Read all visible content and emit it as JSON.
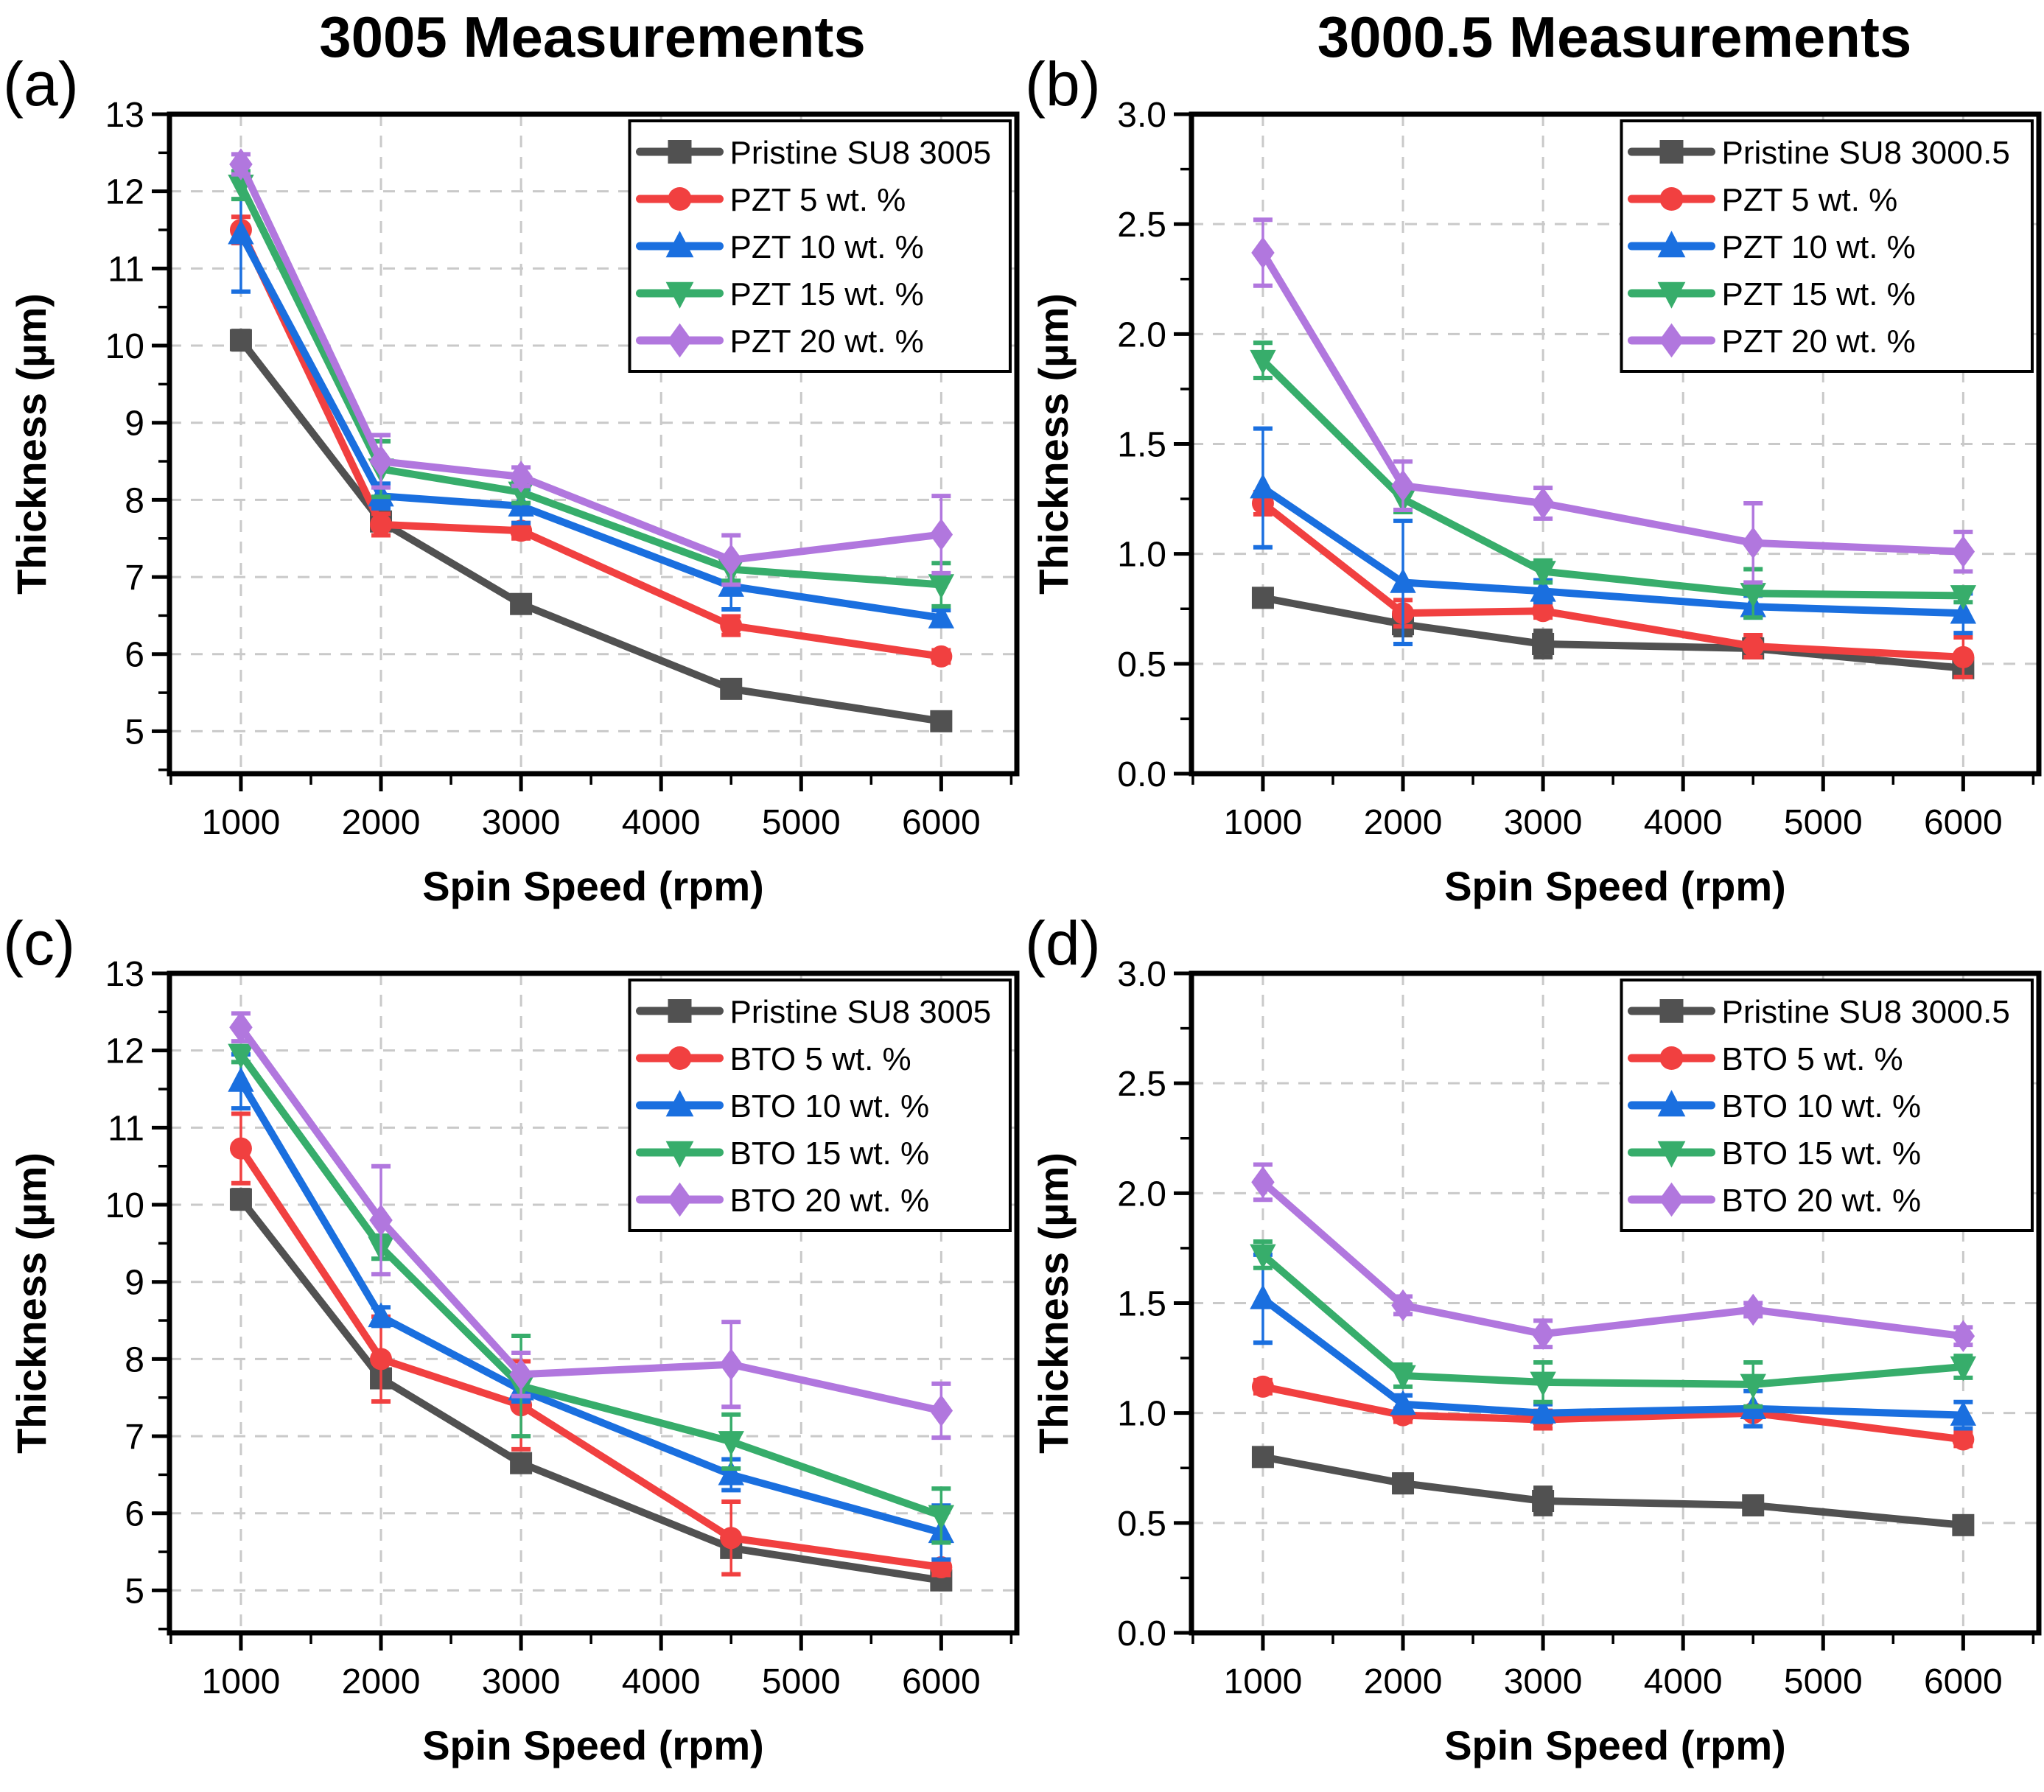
{
  "figure": {
    "column_titles": [
      "3005 Measurements",
      "3000.5 Measurements"
    ],
    "palette": {
      "pristine": "#515151",
      "five": "#F14040",
      "ten": "#1A6FDF",
      "fifteen": "#37AD6B",
      "twenty": "#B177DE",
      "grid": "#c9c9c9",
      "frame": "#000000"
    }
  },
  "chart_data": [
    {
      "id": "a",
      "panel_label": "(a)",
      "type": "line",
      "column_title": "3005 Measurements",
      "xlabel": "Spin Speed (rpm)",
      "ylabel": "Thickness (µm)",
      "x": [
        1000,
        2000,
        3000,
        4500,
        6000
      ],
      "xticks": [
        1000,
        2000,
        3000,
        4000,
        5000,
        6000
      ],
      "xlim": [
        490,
        6540
      ],
      "ylim": [
        4.45,
        13
      ],
      "yticks": [
        5,
        6,
        7,
        8,
        9,
        10,
        11,
        12,
        13
      ],
      "ytick_labels": [
        "5",
        "6",
        "7",
        "8",
        "9",
        "10",
        "11",
        "12",
        "13"
      ],
      "y_minor_step": 0.5,
      "grid": true,
      "legend_position": "top-right",
      "series": [
        {
          "name": "Pristine SU8 3005",
          "color": "#515151",
          "marker": "square",
          "values": [
            10.07,
            7.72,
            6.65,
            5.55,
            5.13
          ],
          "yerr": [
            0.12,
            0.08,
            0.06,
            0.08,
            0.05
          ]
        },
        {
          "name": "PZT 5 wt. %",
          "color": "#F14040",
          "marker": "circle",
          "values": [
            11.5,
            7.68,
            7.6,
            6.37,
            5.97
          ],
          "yerr": [
            0.17,
            0.14,
            0.1,
            0.12,
            0.08
          ]
        },
        {
          "name": "PZT 10 wt. %",
          "color": "#1A6FDF",
          "marker": "triangle-up",
          "values": [
            11.45,
            8.05,
            7.92,
            6.88,
            6.47
          ],
          "yerr": [
            0.75,
            0.16,
            0.22,
            0.3,
            0.1
          ]
        },
        {
          "name": "PZT 15 wt. %",
          "color": "#37AD6B",
          "marker": "triangle-down",
          "values": [
            12.08,
            8.4,
            8.1,
            7.1,
            6.9
          ],
          "yerr": [
            0.18,
            0.36,
            0.14,
            0.15,
            0.28
          ]
        },
        {
          "name": "PZT 20 wt. %",
          "color": "#B177DE",
          "marker": "diamond",
          "values": [
            12.35,
            8.5,
            8.3,
            7.22,
            7.55
          ],
          "yerr": [
            0.13,
            0.34,
            0.12,
            0.32,
            0.5
          ]
        }
      ]
    },
    {
      "id": "b",
      "panel_label": "(b)",
      "type": "line",
      "column_title": "3000.5 Measurements",
      "xlabel": "Spin Speed (rpm)",
      "ylabel": "Thickness (µm)",
      "x": [
        1000,
        2000,
        3000,
        4500,
        6000
      ],
      "xticks": [
        1000,
        2000,
        3000,
        4000,
        5000,
        6000
      ],
      "xlim": [
        490,
        6540
      ],
      "ylim": [
        0,
        3
      ],
      "yticks": [
        0,
        0.5,
        1,
        1.5,
        2,
        2.5,
        3
      ],
      "ytick_labels": [
        "0.0",
        "0.5",
        "1.0",
        "1.5",
        "2.0",
        "2.5",
        "3.0"
      ],
      "y_minor_step": 0.25,
      "grid": true,
      "legend_position": "top-right",
      "series": [
        {
          "name": "Pristine SU8 3000.5",
          "color": "#515151",
          "marker": "square",
          "values": [
            0.8,
            0.68,
            0.59,
            0.57,
            0.48
          ],
          "yerr": [
            0.03,
            0.05,
            0.06,
            0.04,
            0.04
          ]
        },
        {
          "name": "PZT 5 wt. %",
          "color": "#F14040",
          "marker": "circle",
          "values": [
            1.23,
            0.73,
            0.74,
            0.58,
            0.53
          ],
          "yerr": [
            0.05,
            0.06,
            0.03,
            0.05,
            0.09
          ]
        },
        {
          "name": "PZT 10 wt. %",
          "color": "#1A6FDF",
          "marker": "triangle-up",
          "values": [
            1.3,
            0.87,
            0.83,
            0.76,
            0.73
          ],
          "yerr": [
            0.27,
            0.28,
            0.05,
            0.05,
            0.09
          ]
        },
        {
          "name": "PZT 15 wt. %",
          "color": "#37AD6B",
          "marker": "triangle-down",
          "values": [
            1.88,
            1.25,
            0.92,
            0.82,
            0.81
          ],
          "yerr": [
            0.08,
            0.06,
            0.05,
            0.11,
            0.03
          ]
        },
        {
          "name": "PZT 20 wt. %",
          "color": "#B177DE",
          "marker": "diamond",
          "values": [
            2.37,
            1.31,
            1.23,
            1.05,
            1.01
          ],
          "yerr": [
            0.15,
            0.11,
            0.07,
            0.18,
            0.09
          ]
        }
      ]
    },
    {
      "id": "c",
      "panel_label": "(c)",
      "type": "line",
      "column_title": "3005 Measurements",
      "xlabel": "Spin Speed (rpm)",
      "ylabel": "Thickness (µm)",
      "x": [
        1000,
        2000,
        3000,
        4500,
        6000
      ],
      "xticks": [
        1000,
        2000,
        3000,
        4000,
        5000,
        6000
      ],
      "xlim": [
        490,
        6540
      ],
      "ylim": [
        4.45,
        13
      ],
      "yticks": [
        5,
        6,
        7,
        8,
        9,
        10,
        11,
        12,
        13
      ],
      "ytick_labels": [
        "5",
        "6",
        "7",
        "8",
        "9",
        "10",
        "11",
        "12",
        "13"
      ],
      "y_minor_step": 0.5,
      "grid": true,
      "legend_position": "top-right",
      "series": [
        {
          "name": "Pristine SU8 3005",
          "color": "#515151",
          "marker": "square",
          "values": [
            10.07,
            7.75,
            6.65,
            5.55,
            5.13
          ],
          "yerr": [
            0.12,
            0.08,
            0.06,
            0.1,
            0.05
          ]
        },
        {
          "name": "BTO 5 wt. %",
          "color": "#F14040",
          "marker": "circle",
          "values": [
            10.73,
            8.0,
            7.4,
            5.68,
            5.3
          ],
          "yerr": [
            0.45,
            0.55,
            0.57,
            0.47,
            0.1
          ]
        },
        {
          "name": "BTO 10 wt. %",
          "color": "#1A6FDF",
          "marker": "triangle-up",
          "values": [
            11.6,
            8.55,
            7.6,
            6.5,
            5.75
          ],
          "yerr": [
            0.35,
            0.12,
            0.15,
            0.2,
            0.35
          ]
        },
        {
          "name": "BTO 15 wt. %",
          "color": "#37AD6B",
          "marker": "triangle-down",
          "values": [
            11.95,
            9.45,
            7.65,
            6.93,
            5.97
          ],
          "yerr": [
            0.1,
            0.15,
            0.65,
            0.35,
            0.35
          ]
        },
        {
          "name": "BTO 20 wt. %",
          "color": "#B177DE",
          "marker": "diamond",
          "values": [
            12.3,
            9.8,
            7.8,
            7.93,
            7.33
          ],
          "yerr": [
            0.18,
            0.7,
            0.28,
            0.55,
            0.35
          ]
        }
      ]
    },
    {
      "id": "d",
      "panel_label": "(d)",
      "type": "line",
      "column_title": "3000.5 Measurements",
      "xlabel": "Spin Speed (rpm)",
      "ylabel": "Thickness (µm)",
      "x": [
        1000,
        2000,
        3000,
        4500,
        6000
      ],
      "xticks": [
        1000,
        2000,
        3000,
        4000,
        5000,
        6000
      ],
      "xlim": [
        490,
        6540
      ],
      "ylim": [
        0,
        3
      ],
      "yticks": [
        0,
        0.5,
        1,
        1.5,
        2,
        2.5,
        3
      ],
      "ytick_labels": [
        "0.0",
        "0.5",
        "1.0",
        "1.5",
        "2.0",
        "2.5",
        "3.0"
      ],
      "y_minor_step": 0.25,
      "grid": true,
      "legend_position": "top-right",
      "series": [
        {
          "name": "Pristine SU8 3000.5",
          "color": "#515151",
          "marker": "square",
          "values": [
            0.8,
            0.68,
            0.6,
            0.58,
            0.49
          ],
          "yerr": [
            0.03,
            0.04,
            0.06,
            0.04,
            0.03
          ]
        },
        {
          "name": "BTO 5 wt. %",
          "color": "#F14040",
          "marker": "circle",
          "values": [
            1.12,
            0.99,
            0.97,
            1.0,
            0.88
          ],
          "yerr": [
            0.03,
            0.03,
            0.04,
            0.02,
            0.03
          ]
        },
        {
          "name": "BTO 10 wt. %",
          "color": "#1A6FDF",
          "marker": "triangle-up",
          "values": [
            1.52,
            1.04,
            1.0,
            1.02,
            0.99
          ],
          "yerr": [
            0.2,
            0.04,
            0.04,
            0.08,
            0.06
          ]
        },
        {
          "name": "BTO 15 wt. %",
          "color": "#37AD6B",
          "marker": "triangle-down",
          "values": [
            1.72,
            1.17,
            1.14,
            1.13,
            1.21
          ],
          "yerr": [
            0.06,
            0.05,
            0.09,
            0.1,
            0.05
          ]
        },
        {
          "name": "BTO 20 wt. %",
          "color": "#B177DE",
          "marker": "diamond",
          "values": [
            2.05,
            1.49,
            1.36,
            1.47,
            1.35
          ],
          "yerr": [
            0.08,
            0.04,
            0.06,
            0.03,
            0.04
          ]
        }
      ]
    }
  ]
}
